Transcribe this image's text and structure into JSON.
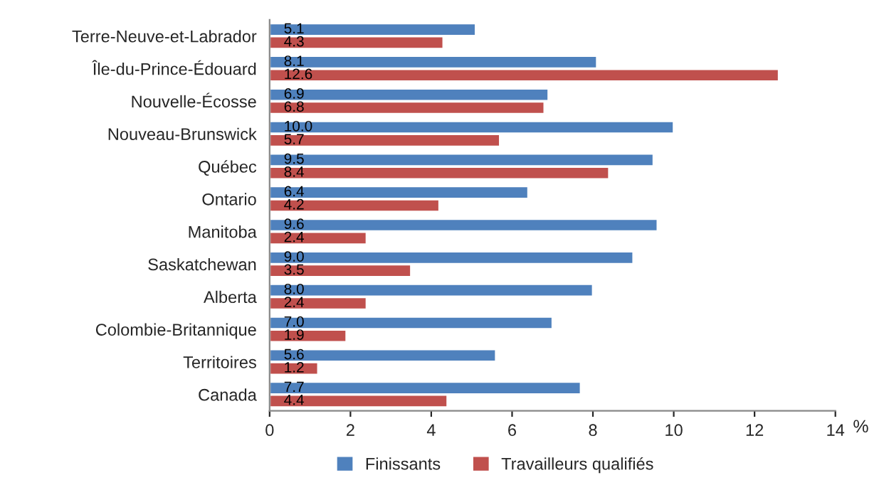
{
  "chart_data": {
    "type": "bar",
    "orientation": "horizontal",
    "categories": [
      "Terre-Neuve-et-Labrador",
      "Île-du-Prince-Édouard",
      "Nouvelle-Écosse",
      "Nouveau-Brunswick",
      "Québec",
      "Ontario",
      "Manitoba",
      "Saskatchewan",
      "Alberta",
      "Colombie-Britannique",
      "Territoires",
      "Canada"
    ],
    "series": [
      {
        "name": "Finissants",
        "color": "#4f81bd",
        "values": [
          5.1,
          8.1,
          6.9,
          10.0,
          9.5,
          6.4,
          9.6,
          9.0,
          8.0,
          7.0,
          5.6,
          7.7
        ],
        "value_labels": [
          "5.1",
          "8.1",
          "6.9",
          "10.0",
          "9.5",
          "6.4",
          "9.6",
          "9.0",
          "8.0",
          "7.0",
          "5.6",
          "7.7"
        ]
      },
      {
        "name": "Travailleurs qualifiés",
        "color": "#c0504d",
        "values": [
          4.3,
          12.6,
          6.8,
          5.7,
          8.4,
          4.2,
          2.4,
          3.5,
          2.4,
          1.9,
          1.2,
          4.4
        ],
        "value_labels": [
          "4.3",
          "12.6",
          "6.8",
          "5.7",
          "8.4",
          "4.2",
          "2.4",
          "3.5",
          "2.4",
          "1.9",
          "1.2",
          "4.4"
        ]
      }
    ],
    "xlabel": "%",
    "xlim": [
      0,
      14
    ],
    "xticks": [
      0,
      2,
      4,
      6,
      8,
      10,
      12,
      14
    ],
    "grid": false,
    "legend": "bottom"
  }
}
